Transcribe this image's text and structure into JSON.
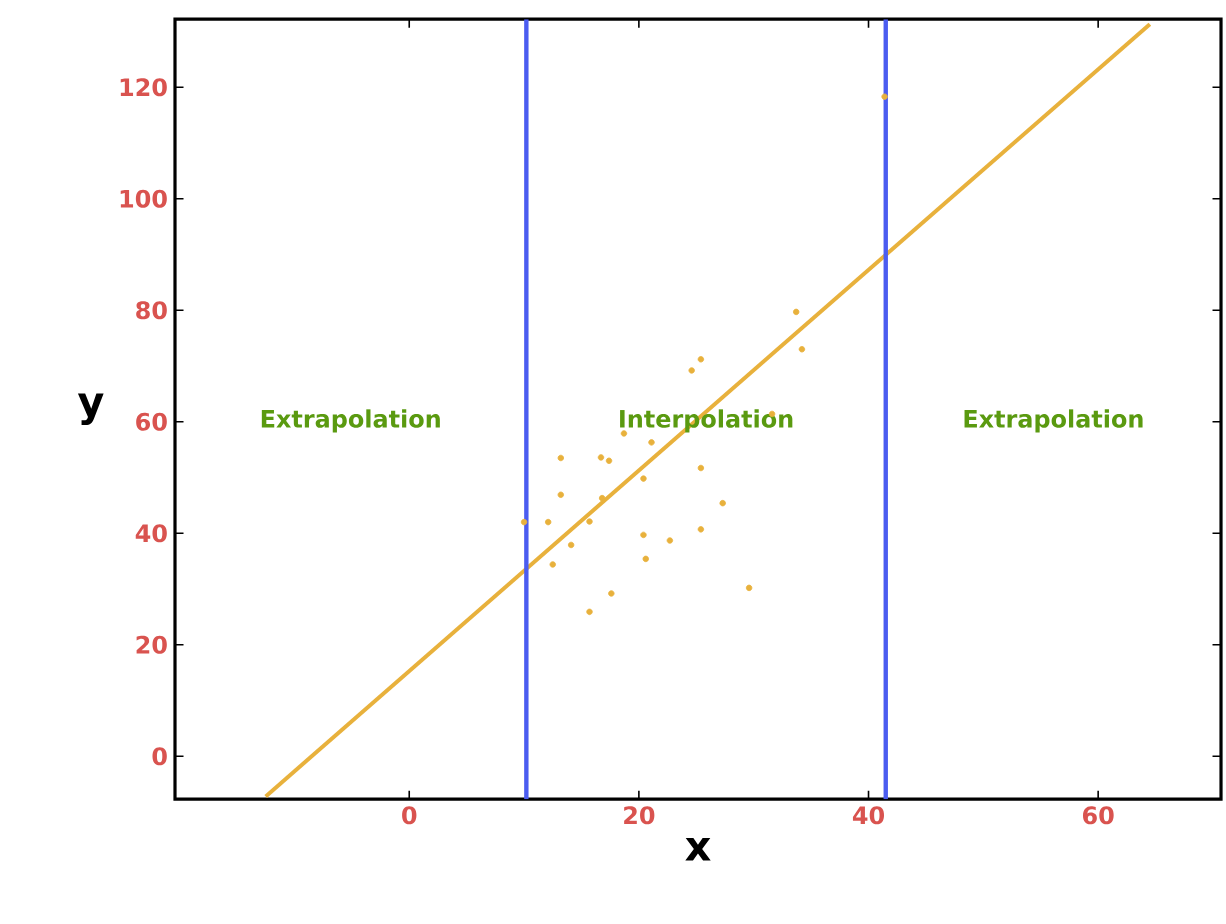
{
  "chart_data": {
    "type": "scatter",
    "xlabel": "x",
    "ylabel": "y",
    "marker": "circle",
    "xlim": [
      -20.4,
      70.7
    ],
    "ylim": [
      -7.7,
      132.2
    ],
    "xticks": [
      0,
      20,
      40,
      60
    ],
    "yticks": [
      0,
      20,
      40,
      60,
      80,
      100,
      120
    ],
    "series": [
      {
        "color": "#e8b13c",
        "x": [
          10.0,
          12.1,
          13.2,
          13.2,
          12.5,
          14.1,
          15.7,
          15.7,
          16.7,
          17.4,
          16.8,
          17.6,
          18.7,
          21.1,
          20.4,
          20.4,
          20.6,
          22.7,
          24.6,
          25.4,
          25.4,
          25.4,
          27.3,
          29.6,
          31.6,
          33.7,
          34.2,
          41.4
        ],
        "values": [
          42.0,
          42.0,
          53.5,
          46.9,
          34.4,
          37.9,
          25.9,
          42.1,
          53.6,
          53.0,
          46.3,
          29.2,
          57.9,
          56.3,
          49.8,
          39.7,
          35.4,
          38.7,
          69.2,
          71.2,
          51.7,
          40.7,
          45.4,
          30.2,
          61.4,
          79.7,
          73.0,
          118.3
        ]
      },
      {
        "type": "line",
        "marker": "none",
        "color": "#e8b13c",
        "x": [
          -12.5,
          64.5
        ],
        "values": [
          -7.2,
          131.3
        ]
      }
    ],
    "ref_lines": [
      {
        "axis": "x",
        "value": 10.2,
        "color": "#4b5cf0"
      },
      {
        "axis": "x",
        "value": 41.5,
        "color": "#4b5cf0"
      }
    ],
    "annotations": [
      "Extrapolation",
      "Interpolation",
      "Extrapolation"
    ]
  }
}
